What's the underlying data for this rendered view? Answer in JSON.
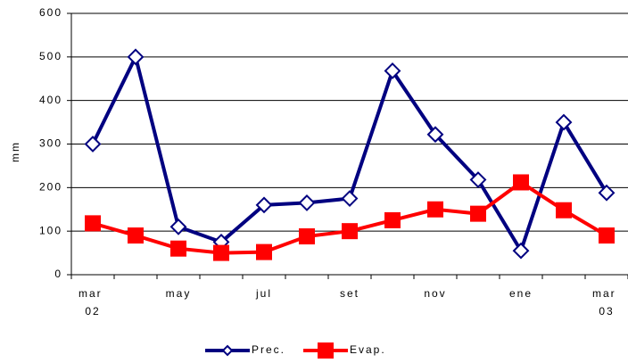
{
  "chart_data": {
    "type": "line",
    "y_label": "mm",
    "categories": [
      "mar 02",
      null,
      "may",
      null,
      "jul",
      null,
      "set",
      null,
      "nov",
      null,
      "ene",
      null,
      "mar 03"
    ],
    "series": [
      {
        "name": "Prec.",
        "color": "#000080",
        "marker": "diamond",
        "values": [
          300,
          500,
          110,
          75,
          160,
          165,
          175,
          468,
          322,
          218,
          55,
          350,
          188
        ]
      },
      {
        "name": "Evap.",
        "color": "#ff0000",
        "marker": "square",
        "values": [
          118,
          90,
          60,
          50,
          52,
          88,
          100,
          125,
          150,
          140,
          212,
          148,
          90
        ]
      }
    ],
    "ylim": [
      0,
      600
    ],
    "yticks": [
      0,
      100,
      200,
      300,
      400,
      500,
      600
    ],
    "grid": true,
    "legend": "bottom"
  }
}
